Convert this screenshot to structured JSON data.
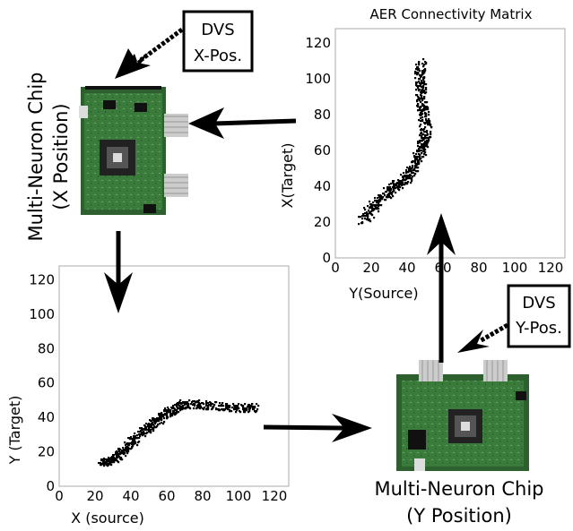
{
  "chips": {
    "x_chip": {
      "line1": "Multi-Neuron Chip",
      "line2": "(X Position)"
    },
    "y_chip": {
      "line1": "Multi-Neuron Chip",
      "line2": "(Y Position)"
    }
  },
  "dvs": {
    "x": {
      "line1": "DVS",
      "line2": "X-Pos."
    },
    "y": {
      "line1": "DVS",
      "line2": "Y-Pos."
    }
  },
  "chart_data": [
    {
      "type": "scatter",
      "title": "AER Connectivity Matrix",
      "xlabel": "Y(Source)",
      "ylabel": "X(Target)",
      "xlim": [
        0,
        128
      ],
      "ylim": [
        0,
        128
      ],
      "xticks": [
        0,
        20,
        40,
        60,
        80,
        100,
        120
      ],
      "yticks": [
        0,
        20,
        40,
        60,
        80,
        100,
        120
      ],
      "band": [
        [
          15,
          22
        ],
        [
          22,
          30
        ],
        [
          30,
          38
        ],
        [
          38,
          44
        ],
        [
          44,
          52
        ],
        [
          48,
          62
        ],
        [
          50,
          72
        ],
        [
          48,
          85
        ],
        [
          47,
          98
        ],
        [
          47,
          110
        ]
      ],
      "band_width": 6
    },
    {
      "type": "scatter",
      "title": "",
      "xlabel": "X (source)",
      "ylabel": "Y (Target)",
      "xlim": [
        0,
        128
      ],
      "ylim": [
        0,
        128
      ],
      "xticks": [
        0,
        20,
        40,
        60,
        80,
        100,
        120
      ],
      "yticks": [
        0,
        20,
        40,
        60,
        80,
        100,
        120
      ],
      "band": [
        [
          22,
          14
        ],
        [
          30,
          16
        ],
        [
          36,
          22
        ],
        [
          44,
          30
        ],
        [
          52,
          37
        ],
        [
          60,
          43
        ],
        [
          68,
          48
        ],
        [
          80,
          48
        ],
        [
          95,
          46
        ],
        [
          110,
          46
        ]
      ],
      "band_width": 5
    }
  ]
}
